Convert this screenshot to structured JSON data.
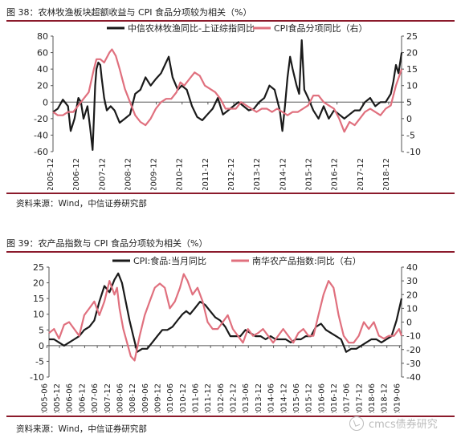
{
  "charts": [
    {
      "fig_title": "图 38：农林牧渔板块超额收益与 CPI 食品分项较为相关（%）",
      "source": "资料来源：Wind，中信证券研究部",
      "legend": [
        {
          "label": "中信农林牧渔同比-上证综指同比",
          "color": "#1a1a1a"
        },
        {
          "label": "CPI食品分项同比（右）",
          "color": "#E0707E"
        }
      ]
    },
    {
      "fig_title": "图 39：农产品指数与 CPI 食品分项较为相关（%）",
      "source": "资料来源：Wind，中信证券研究部",
      "legend": [
        {
          "label": "CPI:食品:当月同比",
          "color": "#1a1a1a"
        },
        {
          "label": "南华农产品指数:同比（右）",
          "color": "#E0707E"
        }
      ]
    }
  ],
  "watermark": "cmcs债券研究",
  "chart_data": [
    {
      "type": "line",
      "x_start": 2005.917,
      "x_end": 2019.417,
      "xticks": [
        "2005-12",
        "2006-12",
        "2007-12",
        "2008-12",
        "2009-12",
        "2010-12",
        "2011-12",
        "2012-12",
        "2013-12",
        "2014-12",
        "2015-12",
        "2016-12",
        "2017-12",
        "2018-12"
      ],
      "ylim_left": [
        -60,
        80
      ],
      "yticks_left": [
        -60,
        -40,
        -20,
        0,
        20,
        40,
        60,
        80
      ],
      "ylim_right": [
        -10,
        25
      ],
      "yticks_right": [
        -10,
        -5,
        0,
        5,
        10,
        15,
        20,
        25
      ],
      "series": [
        {
          "name": "中信农林牧渔同比-上证综指同比",
          "axis": "left",
          "color": "#1a1a1a",
          "x": [
            2005.92,
            2006.1,
            2006.3,
            2006.5,
            2006.6,
            2006.75,
            2006.9,
            2007.0,
            2007.1,
            2007.25,
            2007.35,
            2007.45,
            2007.5,
            2007.55,
            2007.6,
            2007.67,
            2007.75,
            2007.8,
            2007.9,
            2008.0,
            2008.15,
            2008.3,
            2008.5,
            2008.7,
            2008.9,
            2009.1,
            2009.3,
            2009.5,
            2009.7,
            2009.9,
            2010.1,
            2010.25,
            2010.4,
            2010.55,
            2010.75,
            2010.9,
            2011.1,
            2011.3,
            2011.5,
            2011.7,
            2011.9,
            2012.1,
            2012.3,
            2012.5,
            2012.7,
            2012.9,
            2013.1,
            2013.3,
            2013.5,
            2013.7,
            2013.9,
            2014.1,
            2014.3,
            2014.5,
            2014.7,
            2014.8,
            2014.9,
            2015.0,
            2015.1,
            2015.2,
            2015.35,
            2015.45,
            2015.55,
            2015.65,
            2015.8,
            2016.0,
            2016.2,
            2016.4,
            2016.6,
            2016.8,
            2017.0,
            2017.2,
            2017.4,
            2017.6,
            2017.8,
            2018.0,
            2018.2,
            2018.4,
            2018.6,
            2018.8,
            2019.0,
            2019.1,
            2019.2,
            2019.3,
            2019.42
          ],
          "y": [
            -12,
            -8,
            3,
            -5,
            -35,
            -20,
            5,
            0,
            -20,
            -5,
            -30,
            -58,
            -20,
            20,
            40,
            48,
            45,
            30,
            5,
            -10,
            -5,
            -10,
            -25,
            -20,
            -15,
            10,
            15,
            30,
            20,
            28,
            35,
            45,
            55,
            30,
            15,
            20,
            15,
            -5,
            -18,
            -22,
            -15,
            -8,
            5,
            -15,
            -10,
            -5,
            0,
            -5,
            -10,
            -8,
            0,
            5,
            20,
            15,
            -10,
            -35,
            -5,
            30,
            55,
            40,
            20,
            10,
            75,
            15,
            5,
            -10,
            -20,
            -5,
            -20,
            -10,
            -15,
            -20,
            -15,
            -10,
            -10,
            0,
            5,
            -5,
            0,
            0,
            10,
            25,
            45,
            35,
            60
          ]
        },
        {
          "name": "CPI食品分项同比（右）",
          "axis": "right",
          "color": "#E0707E",
          "x": [
            2005.92,
            2006.1,
            2006.3,
            2006.5,
            2006.7,
            2006.9,
            2007.1,
            2007.3,
            2007.5,
            2007.6,
            2007.75,
            2007.9,
            2008.1,
            2008.2,
            2008.35,
            2008.5,
            2008.7,
            2008.9,
            2009.1,
            2009.3,
            2009.5,
            2009.7,
            2009.9,
            2010.1,
            2010.3,
            2010.5,
            2010.7,
            2010.85,
            2011.0,
            2011.2,
            2011.4,
            2011.6,
            2011.8,
            2012.0,
            2012.2,
            2012.4,
            2012.6,
            2012.8,
            2013.0,
            2013.2,
            2013.4,
            2013.6,
            2013.8,
            2014.0,
            2014.2,
            2014.4,
            2014.6,
            2014.8,
            2015.0,
            2015.2,
            2015.4,
            2015.6,
            2015.8,
            2016.0,
            2016.2,
            2016.4,
            2016.6,
            2016.8,
            2017.0,
            2017.2,
            2017.4,
            2017.6,
            2017.8,
            2018.0,
            2018.2,
            2018.4,
            2018.6,
            2018.8,
            2019.0,
            2019.2,
            2019.42
          ],
          "y": [
            2,
            1,
            1,
            2,
            2,
            4,
            6,
            8,
            15,
            18,
            18,
            17,
            20,
            21,
            19,
            15,
            9,
            5,
            1,
            -1,
            -2,
            0,
            3,
            5,
            6,
            6,
            8,
            11,
            10,
            12,
            14,
            13,
            10,
            9,
            8,
            6,
            3,
            3,
            3,
            5,
            4,
            3,
            2,
            3,
            3,
            2,
            3,
            2,
            1,
            2,
            2,
            3,
            4,
            7,
            7,
            5,
            4,
            3,
            0,
            -4,
            -1,
            -2,
            0,
            2,
            3,
            2,
            1,
            3,
            4,
            10,
            15
          ]
        }
      ]
    },
    {
      "type": "line",
      "x_start": 2005.5,
      "x_end": 2019.5,
      "xticks": [
        "2005-06",
        "2005-12",
        "2006-06",
        "2006-12",
        "2007-06",
        "2007-12",
        "2008-06",
        "2008-12",
        "2009-06",
        "2009-12",
        "2010-06",
        "2010-12",
        "2011-06",
        "2011-12",
        "2012-06",
        "2012-12",
        "2013-06",
        "2013-12",
        "2014-06",
        "2014-12",
        "2015-06",
        "2015-12",
        "2016-06",
        "2016-12",
        "2017-06",
        "2017-12",
        "2018-06",
        "2018-12",
        "2019-06"
      ],
      "ylim_left": [
        -10,
        25
      ],
      "yticks_left": [
        -10,
        -5,
        0,
        5,
        10,
        15,
        20,
        25
      ],
      "ylim_right": [
        -40,
        40
      ],
      "yticks_right": [
        -40,
        -30,
        -20,
        -10,
        0,
        10,
        20,
        30,
        40
      ],
      "series": [
        {
          "name": "CPI:食品:当月同比",
          "axis": "left",
          "color": "#1a1a1a",
          "x": [
            2005.5,
            2005.7,
            2005.9,
            2006.1,
            2006.3,
            2006.5,
            2006.7,
            2006.9,
            2007.1,
            2007.3,
            2007.5,
            2007.7,
            2007.9,
            2008.1,
            2008.25,
            2008.4,
            2008.55,
            2008.7,
            2008.85,
            2009.0,
            2009.2,
            2009.4,
            2009.6,
            2009.8,
            2010.0,
            2010.2,
            2010.4,
            2010.6,
            2010.8,
            2010.95,
            2011.1,
            2011.3,
            2011.5,
            2011.7,
            2011.9,
            2012.1,
            2012.3,
            2012.5,
            2012.7,
            2012.9,
            2013.1,
            2013.3,
            2013.5,
            2013.7,
            2013.9,
            2014.1,
            2014.3,
            2014.5,
            2014.7,
            2014.9,
            2015.1,
            2015.3,
            2015.5,
            2015.7,
            2015.9,
            2016.1,
            2016.3,
            2016.5,
            2016.7,
            2016.9,
            2017.1,
            2017.3,
            2017.5,
            2017.7,
            2017.9,
            2018.1,
            2018.3,
            2018.5,
            2018.7,
            2018.9,
            2019.1,
            2019.3,
            2019.5
          ],
          "y": [
            2,
            2,
            1,
            0,
            1,
            2,
            3,
            5,
            6,
            8,
            14,
            19,
            17,
            21,
            23,
            20,
            14,
            8,
            3,
            -2,
            -1,
            -1,
            1,
            3,
            5,
            5,
            6,
            8,
            10,
            11,
            10,
            12,
            14,
            13,
            11,
            9,
            8,
            6,
            3,
            3,
            3,
            5,
            4,
            3,
            3,
            2,
            3,
            2,
            2,
            2,
            1,
            2,
            2,
            3,
            3,
            6,
            7,
            5,
            4,
            3,
            2,
            -2,
            -1,
            -1,
            0,
            1,
            2,
            2,
            1,
            2,
            3,
            8,
            15
          ]
        },
        {
          "name": "南华农产品指数:同比（右）",
          "axis": "right",
          "color": "#E0707E",
          "x": [
            2005.5,
            2005.7,
            2005.9,
            2006.1,
            2006.3,
            2006.5,
            2006.7,
            2006.9,
            2007.1,
            2007.3,
            2007.5,
            2007.7,
            2007.9,
            2008.1,
            2008.2,
            2008.3,
            2008.45,
            2008.6,
            2008.75,
            2008.9,
            2009.1,
            2009.3,
            2009.5,
            2009.7,
            2009.9,
            2010.1,
            2010.3,
            2010.5,
            2010.7,
            2010.85,
            2011.0,
            2011.2,
            2011.4,
            2011.6,
            2011.8,
            2012.0,
            2012.2,
            2012.4,
            2012.6,
            2012.8,
            2013.0,
            2013.2,
            2013.4,
            2013.6,
            2013.8,
            2014.0,
            2014.2,
            2014.4,
            2014.6,
            2014.8,
            2015.0,
            2015.2,
            2015.4,
            2015.6,
            2015.8,
            2016.0,
            2016.2,
            2016.4,
            2016.6,
            2016.8,
            2016.9,
            2017.0,
            2017.2,
            2017.4,
            2017.6,
            2017.8,
            2018.0,
            2018.2,
            2018.4,
            2018.6,
            2018.8,
            2019.0,
            2019.2,
            2019.4,
            2019.5
          ],
          "y": [
            -8,
            -5,
            -12,
            -2,
            0,
            -5,
            -10,
            5,
            10,
            15,
            5,
            15,
            30,
            20,
            25,
            10,
            -5,
            -15,
            -25,
            -28,
            -10,
            5,
            15,
            25,
            28,
            25,
            10,
            15,
            25,
            35,
            30,
            20,
            25,
            15,
            0,
            -5,
            -5,
            0,
            5,
            -5,
            -10,
            -15,
            -5,
            -10,
            -8,
            -5,
            -10,
            -15,
            -10,
            -5,
            -10,
            -15,
            -8,
            -5,
            -10,
            -10,
            5,
            20,
            30,
            25,
            15,
            5,
            -10,
            -15,
            -15,
            -10,
            0,
            -5,
            0,
            -10,
            -12,
            -10,
            -10,
            -5,
            -10
          ]
        }
      ]
    }
  ]
}
